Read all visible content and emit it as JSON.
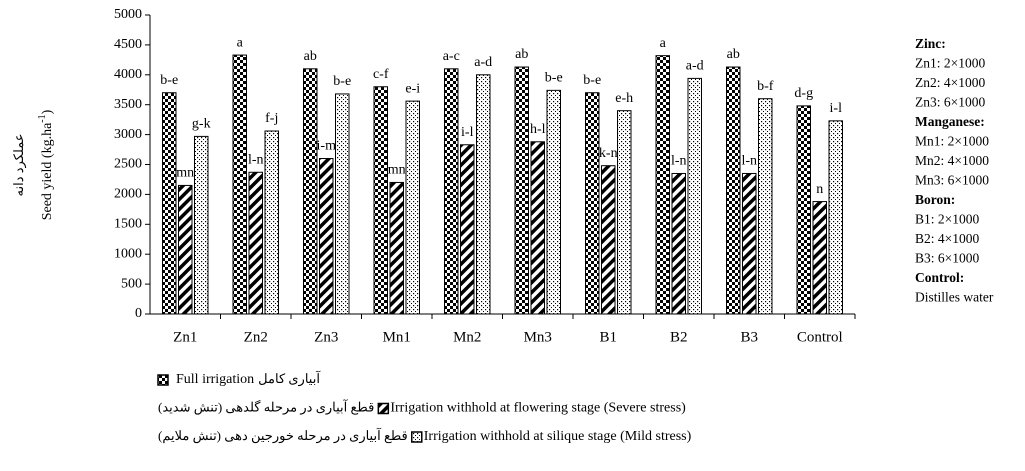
{
  "chart_data": {
    "type": "bar",
    "y_label": {
      "text": "Seed yield (kg.ha",
      "sup": "-1",
      "end": ")"
    },
    "y_label_fa": "عملکرد دانه",
    "categories": [
      "Zn1",
      "Zn2",
      "Zn3",
      "Mn1",
      "Mn2",
      "Mn3",
      "B1",
      "B2",
      "B3",
      "Control"
    ],
    "series": [
      {
        "name": "Full irrigation",
        "name_fa": "آبیاری کامل",
        "color": "#000000",
        "pattern": "checker",
        "values": [
          3700,
          4330,
          4100,
          3800,
          4100,
          4130,
          3700,
          4320,
          4130,
          3480
        ],
        "value_labels": [
          "b-e",
          "a",
          "ab",
          "c-f",
          "a-c",
          "ab",
          "b-e",
          "a",
          "ab",
          "d-g"
        ]
      },
      {
        "name": "Irrigation withhold at flowering stage (Severe stress)",
        "name_fa": "قطع آبیاری در مرحله گلدهی (تنش شدید)",
        "color": "#000000",
        "pattern": "diagonal",
        "values": [
          2150,
          2370,
          2600,
          2200,
          2830,
          2880,
          2480,
          2350,
          2350,
          1880
        ],
        "value_labels": [
          "mn",
          "l-n",
          "i-m",
          "mn",
          "i-l",
          "h-l",
          "k-n",
          "l-n",
          "l-n",
          "n"
        ]
      },
      {
        "name": "Irrigation withhold at silique stage (Mild stress)",
        "name_fa": "قطع آبیاری در مرحله خورجین دهی (تنش ملایم)",
        "color": "#000000",
        "pattern": "dots",
        "values": [
          2970,
          3060,
          3680,
          3560,
          4000,
          3740,
          3400,
          3940,
          3600,
          3230
        ],
        "value_labels": [
          "g-k",
          "f-j",
          "b-e",
          "e-i",
          "a-d",
          "b-e",
          "e-h",
          "a-d",
          "b-f",
          "i-l"
        ]
      }
    ],
    "ylim": [
      0,
      5000
    ],
    "yticks": [
      0,
      500,
      1000,
      1500,
      2000,
      2500,
      3000,
      3500,
      4000,
      4500,
      5000
    ],
    "notes": [
      {
        "text": "Zinc:",
        "bold": true
      },
      {
        "text": "Zn1: 2×1000"
      },
      {
        "text": "Zn2: 4×1000"
      },
      {
        "text": "Zn3: 6×1000"
      },
      {
        "text": "Manganese:",
        "bold": true
      },
      {
        "text": "Mn1: 2×1000"
      },
      {
        "text": "Mn2: 4×1000"
      },
      {
        "text": "Mn3: 6×1000"
      },
      {
        "text": "Boron:",
        "bold": true
      },
      {
        "text": "B1: 2×1000"
      },
      {
        "text": "B2: 4×1000"
      },
      {
        "text": "B3: 6×1000"
      },
      {
        "text": "Control:",
        "bold": true
      },
      {
        "text": "Distilles water"
      }
    ]
  }
}
